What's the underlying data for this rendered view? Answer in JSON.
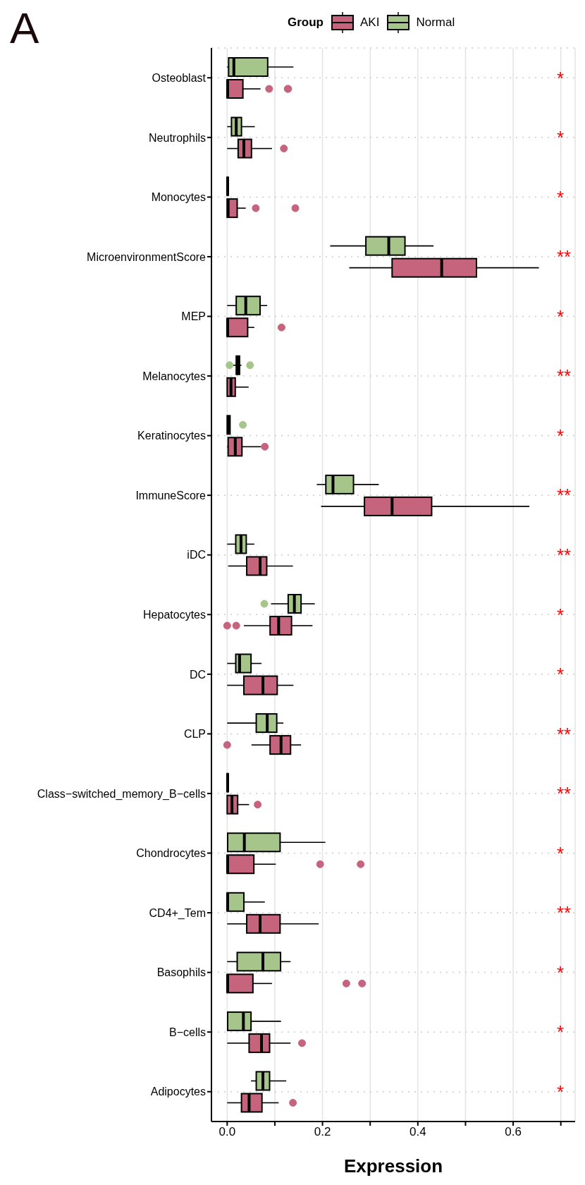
{
  "chart_data": {
    "type": "box",
    "title": "A",
    "orientation": "horizontal",
    "xlabel": "Expression",
    "legend_title": "Group",
    "legend": "top",
    "grid": true,
    "categories": [
      "Osteoblast",
      "Neutrophils",
      "Monocytes",
      "MicroenvironmentScore",
      "MEP",
      "Melanocytes",
      "Keratinocytes",
      "ImmuneScore",
      "iDC",
      "Hepatocytes",
      "DC",
      "CLP",
      "Class−switched_memory_B−cells",
      "Chondrocytes",
      "CD4+_Tem",
      "Basophils",
      "B−cells",
      "Adipocytes"
    ],
    "xlim": [
      -0.033,
      0.73
    ],
    "xticks": [
      {
        "value": 0,
        "label": "0.0"
      },
      {
        "value": 0.1,
        "label": null
      },
      0.2,
      {
        "value": 0.3,
        "label": null
      },
      0.4,
      {
        "value": 0.5,
        "label": null
      },
      0.6,
      {
        "value": 0.7,
        "label": null
      }
    ],
    "series": [
      {
        "name": "AKI",
        "color": "#c6647e",
        "boxes": [
          {
            "low": 0,
            "q1": 0,
            "median": 0.001,
            "q3": 0.033,
            "high": 0.07,
            "outliers": [
              0.088,
              0.127,
              0.128
            ]
          },
          {
            "low": 0,
            "q1": 0.023,
            "median": 0.035,
            "q3": 0.051,
            "high": 0.094,
            "outliers": [
              0.119
            ]
          },
          {
            "low": 0,
            "q1": 0,
            "median": 0.002,
            "q3": 0.021,
            "high": 0.039,
            "outliers": [
              0.06,
              0.143
            ]
          },
          {
            "low": 0.256,
            "q1": 0.346,
            "median": 0.45,
            "q3": 0.523,
            "high": 0.654
          },
          {
            "low": 0,
            "q1": 0,
            "median": 0.001,
            "q3": 0.043,
            "high": 0.057,
            "outliers": [
              0.114
            ]
          },
          {
            "low": 0,
            "q1": 0,
            "median": 0.008,
            "q3": 0.017,
            "high": 0.045
          },
          {
            "low": 0,
            "q1": 0.002,
            "median": 0.017,
            "q3": 0.031,
            "high": 0.071,
            "outliers": [
              0.079
            ]
          },
          {
            "low": 0.197,
            "q1": 0.288,
            "median": 0.346,
            "q3": 0.429,
            "high": 0.634
          },
          {
            "low": 0.002,
            "q1": 0.041,
            "median": 0.069,
            "q3": 0.083,
            "high": 0.138
          },
          {
            "low": 0.035,
            "q1": 0.09,
            "median": 0.108,
            "q3": 0.135,
            "high": 0.179,
            "outliers": [
              0,
              0.019
            ]
          },
          {
            "low": 0,
            "q1": 0.035,
            "median": 0.075,
            "q3": 0.105,
            "high": 0.139
          },
          {
            "low": 0.051,
            "q1": 0.09,
            "median": 0.113,
            "q3": 0.133,
            "high": 0.155,
            "outliers": [
              0
            ]
          },
          {
            "low": 0,
            "q1": 0,
            "median": 0.01,
            "q3": 0.022,
            "high": 0.046,
            "outliers": [
              0.064
            ]
          },
          {
            "low": 0,
            "q1": 0,
            "median": 0.001,
            "q3": 0.056,
            "high": 0.102,
            "outliers": [
              0.195,
              0.28
            ]
          },
          {
            "low": 0,
            "q1": 0.041,
            "median": 0.069,
            "q3": 0.111,
            "high": 0.192
          },
          {
            "low": 0,
            "q1": 0,
            "median": 0.001,
            "q3": 0.054,
            "high": 0.094,
            "outliers": [
              0.25,
              0.283
            ]
          },
          {
            "low": 0,
            "q1": 0.046,
            "median": 0.072,
            "q3": 0.089,
            "high": 0.133,
            "outliers": [
              0.157
            ]
          },
          {
            "low": 0,
            "q1": 0.03,
            "median": 0.046,
            "q3": 0.073,
            "high": 0.108,
            "outliers": [
              0.138
            ]
          }
        ]
      },
      {
        "name": "Normal",
        "color": "#a5c58a",
        "boxes": [
          {
            "low": 0,
            "q1": 0.003,
            "median": 0.014,
            "q3": 0.085,
            "high": 0.139
          },
          {
            "low": 0,
            "q1": 0.009,
            "median": 0.019,
            "q3": 0.03,
            "high": 0.058
          },
          {
            "low": 0,
            "q1": 0,
            "median": 0.001,
            "q3": 0.002,
            "high": 0.002
          },
          {
            "low": 0.216,
            "q1": 0.291,
            "median": 0.339,
            "q3": 0.373,
            "high": 0.433
          },
          {
            "low": 0,
            "q1": 0.019,
            "median": 0.039,
            "q3": 0.069,
            "high": 0.084
          },
          {
            "low": 0.012,
            "q1": 0.019,
            "median": 0.022,
            "q3": 0.026,
            "high": 0.03,
            "outliers": [
              0.005,
              0.048
            ]
          },
          {
            "low": 0,
            "q1": 0,
            "median": 0.003,
            "q3": 0.006,
            "high": 0.006,
            "outliers": [
              0.033
            ]
          },
          {
            "low": 0.188,
            "q1": 0.207,
            "median": 0.222,
            "q3": 0.265,
            "high": 0.318
          },
          {
            "low": 0,
            "q1": 0.018,
            "median": 0.029,
            "q3": 0.04,
            "high": 0.057
          },
          {
            "low": 0.092,
            "q1": 0.128,
            "median": 0.141,
            "q3": 0.155,
            "high": 0.184,
            "outliers": [
              0.078
            ]
          },
          {
            "low": 0,
            "q1": 0.018,
            "median": 0.026,
            "q3": 0.05,
            "high": 0.072
          },
          {
            "low": 0,
            "q1": 0.061,
            "median": 0.084,
            "q3": 0.104,
            "high": 0.118
          },
          {
            "low": 0,
            "q1": 0,
            "median": 0.001,
            "q3": 0.002,
            "high": 0.002
          },
          {
            "low": 0,
            "q1": 0.001,
            "median": 0.036,
            "q3": 0.111,
            "high": 0.206
          },
          {
            "low": 0,
            "q1": 0,
            "median": 0.001,
            "q3": 0.035,
            "high": 0.079
          },
          {
            "low": 0,
            "q1": 0.021,
            "median": 0.075,
            "q3": 0.112,
            "high": 0.133
          },
          {
            "low": 0,
            "q1": 0.001,
            "median": 0.034,
            "q3": 0.05,
            "high": 0.113
          },
          {
            "low": 0.05,
            "q1": 0.061,
            "median": 0.075,
            "q3": 0.089,
            "high": 0.124
          }
        ]
      }
    ],
    "annotations": [
      "*",
      "*",
      "*",
      "**",
      "*",
      "**",
      "*",
      "**",
      "**",
      "*",
      "*",
      "**",
      "**",
      "*",
      "**",
      "*",
      "*",
      "*"
    ]
  }
}
